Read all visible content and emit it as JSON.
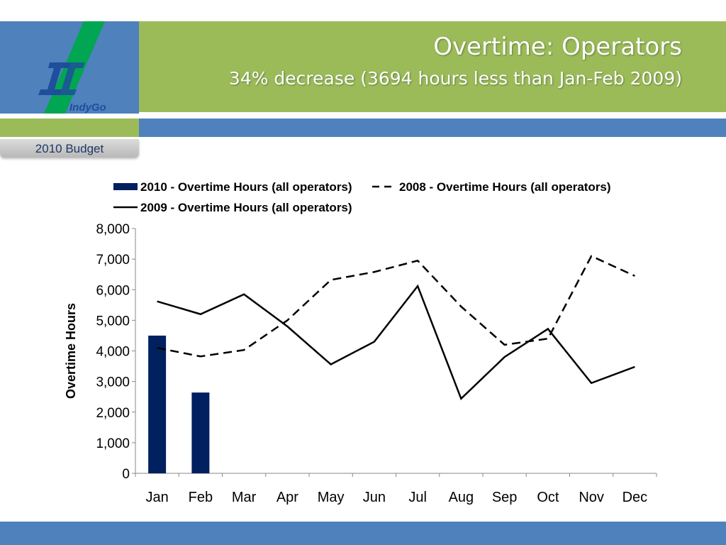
{
  "slide": {
    "title": "Overtime: Operators",
    "subtitle": "34% decrease (3694 hours less than Jan-Feb 2009)",
    "section_tab": "2010 Budget",
    "logo_text": "IndyGo"
  },
  "colors": {
    "green": "#9bbb59",
    "blue": "#4f81bd",
    "bar": "#002060",
    "line": "#000000"
  },
  "chart_data": {
    "type": "bar",
    "categories": [
      "Jan",
      "Feb",
      "Mar",
      "Apr",
      "May",
      "Jun",
      "Jul",
      "Aug",
      "Sep",
      "Oct",
      "Nov",
      "Dec"
    ],
    "ylabel": "Overtime Hours",
    "ylim": [
      0,
      8000
    ],
    "yticks": [
      "0",
      "1,000",
      "2,000",
      "3,000",
      "4,000",
      "5,000",
      "6,000",
      "7,000",
      "8,000"
    ],
    "legend_position": "top",
    "grid": false,
    "series": [
      {
        "name": "2010 - Overtime Hours (all operators)",
        "type": "bar",
        "values": [
          4500,
          2640,
          null,
          null,
          null,
          null,
          null,
          null,
          null,
          null,
          null,
          null
        ]
      },
      {
        "name": "2008 - Overtime Hours (all operators)",
        "type": "line",
        "style": "dashed",
        "values": [
          4100,
          3820,
          4030,
          5000,
          6320,
          6580,
          6950,
          5450,
          4200,
          4400,
          7100,
          6450
        ]
      },
      {
        "name": "2009 - Overtime Hours (all operators)",
        "type": "line",
        "style": "solid",
        "values": [
          5620,
          5200,
          5850,
          4800,
          3560,
          4300,
          6120,
          2440,
          3800,
          4720,
          2950,
          3480
        ]
      }
    ]
  }
}
